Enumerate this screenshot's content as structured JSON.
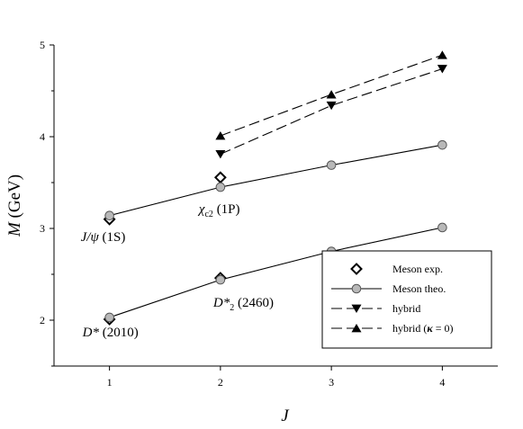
{
  "chart_data": {
    "type": "line",
    "xlabel": "J",
    "ylabel": "M (GeV)",
    "xlim": [
      0.5,
      4.5
    ],
    "ylim": [
      1.5,
      5
    ],
    "x_ticks": [
      "1",
      "2",
      "3",
      "4"
    ],
    "y_ticks": [
      "2",
      "3",
      "4",
      "5"
    ],
    "grid": false,
    "legend_position": "bottom-right",
    "series": [
      {
        "name": "Meson exp.",
        "marker": "diamond-open",
        "line": "none",
        "color": "#000000",
        "points": [
          {
            "x": 1,
            "y": 2.01
          },
          {
            "x": 2,
            "y": 2.46
          },
          {
            "x": 1,
            "y": 3.1
          },
          {
            "x": 2,
            "y": 3.556
          }
        ]
      },
      {
        "name": "Meson theo.",
        "marker": "circle-gray",
        "line": "solid",
        "color": "#000000",
        "fill": "#b8b8b8",
        "lines": [
          [
            {
              "x": 1,
              "y": 2.03
            },
            {
              "x": 2,
              "y": 2.44
            },
            {
              "x": 3,
              "y": 2.75
            },
            {
              "x": 4,
              "y": 3.01
            }
          ],
          [
            {
              "x": 1,
              "y": 3.14
            },
            {
              "x": 2,
              "y": 3.45
            },
            {
              "x": 3,
              "y": 3.69
            },
            {
              "x": 4,
              "y": 3.91
            }
          ]
        ]
      },
      {
        "name": "hybrid",
        "marker": "triangle-down",
        "line": "dashed",
        "color": "#000000",
        "lines": [
          [
            {
              "x": 2,
              "y": 3.81
            },
            {
              "x": 3,
              "y": 4.34
            },
            {
              "x": 4,
              "y": 4.74
            }
          ]
        ]
      },
      {
        "name": "hybrid (κ = 0)",
        "marker": "triangle-up",
        "line": "dashed",
        "color": "#000000",
        "lines": [
          [
            {
              "x": 2,
              "y": 4.01
            },
            {
              "x": 3,
              "y": 4.46
            },
            {
              "x": 4,
              "y": 4.89
            }
          ]
        ]
      }
    ],
    "annotations": [
      {
        "id": "dstar2010",
        "text_main": "D*",
        "text_rest": " (2010)",
        "x": 1,
        "y": 2.0
      },
      {
        "id": "dstar2460",
        "text_main": "D*",
        "text_sub": "2",
        "text_rest": " (2460)",
        "x": 2,
        "y": 2.46
      },
      {
        "id": "jpsi",
        "text_main": "J/ψ",
        "text_rest": " (1S)",
        "x": 1,
        "y": 3.1
      },
      {
        "id": "chic2",
        "text_main": "χ",
        "text_sub": "c2",
        "text_rest": " (1P)",
        "x": 2,
        "y": 3.5
      }
    ]
  }
}
